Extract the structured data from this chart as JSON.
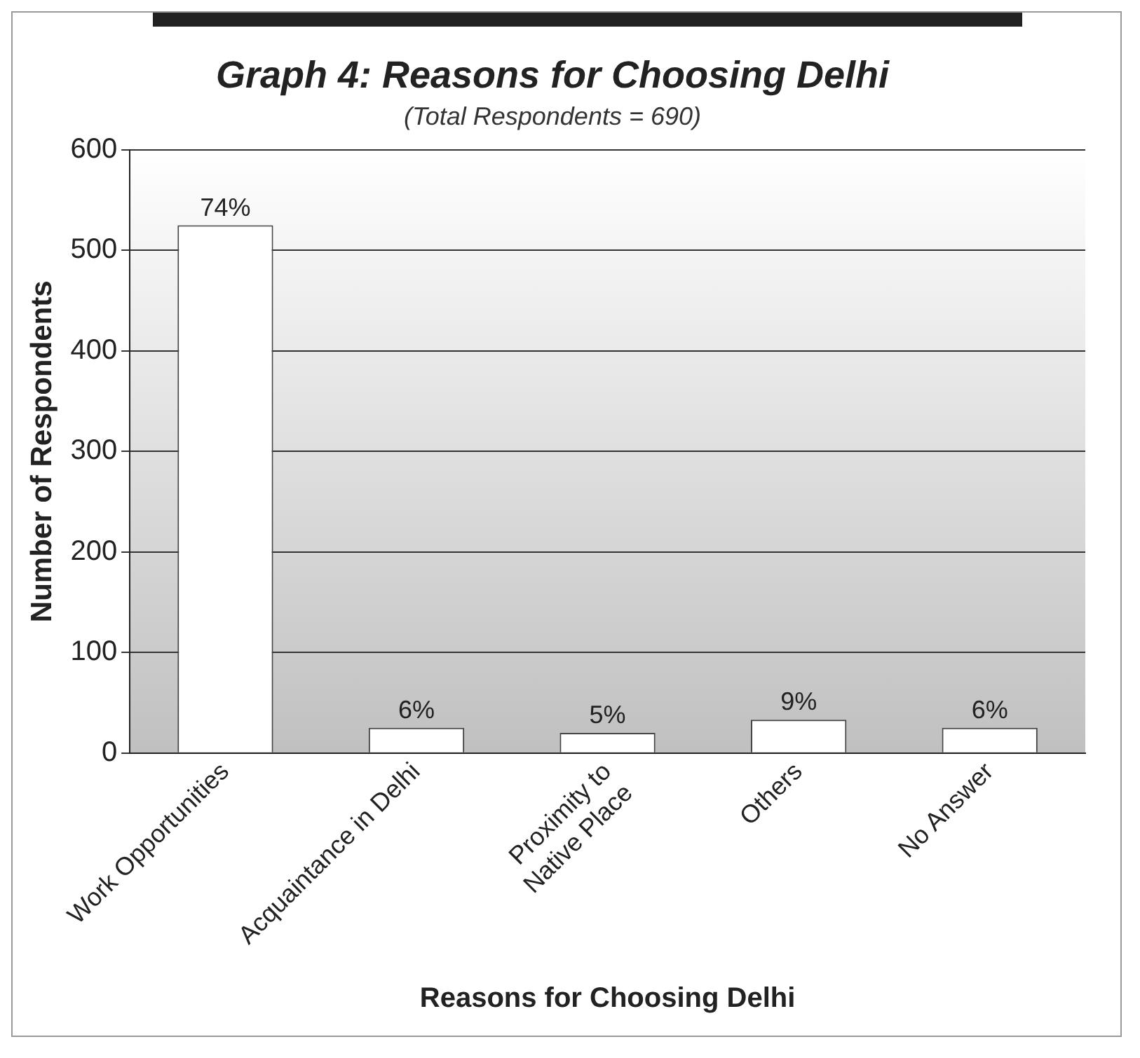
{
  "chart_data": {
    "type": "bar",
    "title": "Graph 4: Reasons for Choosing Delhi",
    "subtitle": "(Total Respondents = 690)",
    "xlabel": "Reasons for Choosing Delhi",
    "ylabel": "Number of Respondents",
    "categories": [
      "Work Opportunities",
      "Acquaintance in Delhi",
      "Proximity to Native Place",
      "Others",
      "No Answer"
    ],
    "values": [
      525,
      25,
      20,
      33,
      25
    ],
    "color": "#ffffff",
    "annotations": [
      {
        "text": "74%",
        "x": "Work Opportunities",
        "y": 525
      },
      {
        "text": "6%",
        "x": "Acquaintance in Delhi",
        "y": 25
      },
      {
        "text": "5%",
        "x": "Proximity to Native Place",
        "y": 20
      },
      {
        "text": "9%",
        "x": "Others",
        "y": 33
      },
      {
        "text": "6%",
        "x": "No Answer",
        "y": 25
      }
    ],
    "ylim": [
      0,
      600
    ],
    "yticks": [
      0,
      100,
      200,
      300,
      400,
      500,
      600
    ],
    "grid": "y"
  }
}
